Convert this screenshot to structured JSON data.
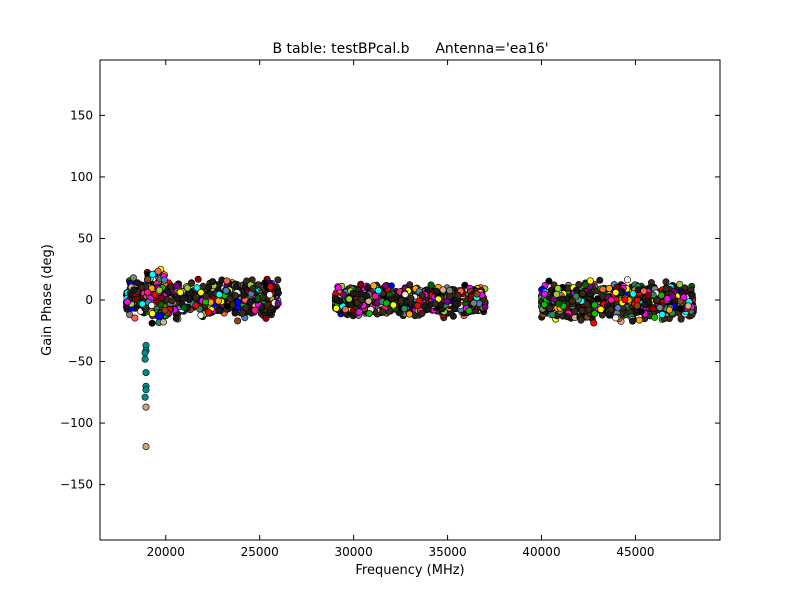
{
  "chart_data": {
    "type": "scatter",
    "title": "B table: testBPcal.b",
    "subtitle": "Antenna='ea16'",
    "xlabel": "Frequency (MHz)",
    "ylabel": "Gain Phase (deg)",
    "xlim": [
      16500,
      49500
    ],
    "ylim": [
      -195,
      195
    ],
    "xticks": [
      {
        "value": 20000,
        "label": "20000"
      },
      {
        "value": 25000,
        "label": "25000"
      },
      {
        "value": 30000,
        "label": "30000"
      },
      {
        "value": 35000,
        "label": "35000"
      },
      {
        "value": 40000,
        "label": "40000"
      },
      {
        "value": 45000,
        "label": "45000"
      }
    ],
    "yticks": [
      {
        "value": 150,
        "label": "150"
      },
      {
        "value": 100,
        "label": "100"
      },
      {
        "value": 50,
        "label": "50"
      },
      {
        "value": 0,
        "label": "0"
      },
      {
        "value": -50,
        "label": "−50"
      },
      {
        "value": -100,
        "label": "−100"
      },
      {
        "value": -150,
        "label": "−150"
      }
    ],
    "grid": false,
    "legend": "none",
    "bands": [
      {
        "x_range": [
          17900,
          26000
        ],
        "y_range": [
          -18,
          20
        ]
      },
      {
        "x_range": [
          29000,
          37000
        ],
        "y_range": [
          -16,
          15
        ]
      },
      {
        "x_range": [
          40000,
          48100
        ],
        "y_range": [
          -20,
          18
        ]
      }
    ],
    "outliers": [
      {
        "x": 18950,
        "y": -37
      },
      {
        "x": 18950,
        "y": -41
      },
      {
        "x": 18900,
        "y": -43
      },
      {
        "x": 18900,
        "y": -48
      },
      {
        "x": 18950,
        "y": -59
      },
      {
        "x": 18950,
        "y": -70
      },
      {
        "x": 18950,
        "y": -73
      },
      {
        "x": 18900,
        "y": -79
      },
      {
        "x": 18950,
        "y": -87
      },
      {
        "x": 18950,
        "y": -119
      }
    ],
    "outlier_colors": [
      "#008b8b",
      "#008b8b",
      "#008b8b",
      "#008b8b",
      "#008b8b",
      "#008b8b",
      "#008b8b",
      "#008b8b",
      "#c8a878",
      "#c8a878"
    ],
    "palette": [
      "#ff0000",
      "#00c000",
      "#0000ff",
      "#ffff00",
      "#ff00ff",
      "#00ffff",
      "#ffa500",
      "#808080",
      "#8b4513",
      "#2e8b57",
      "#800080",
      "#ff6347",
      "#000000",
      "#f0f0f0",
      "#006400",
      "#d2b48c",
      "#4682b4",
      "#9acd32",
      "#ff1493",
      "#8b0000"
    ]
  }
}
